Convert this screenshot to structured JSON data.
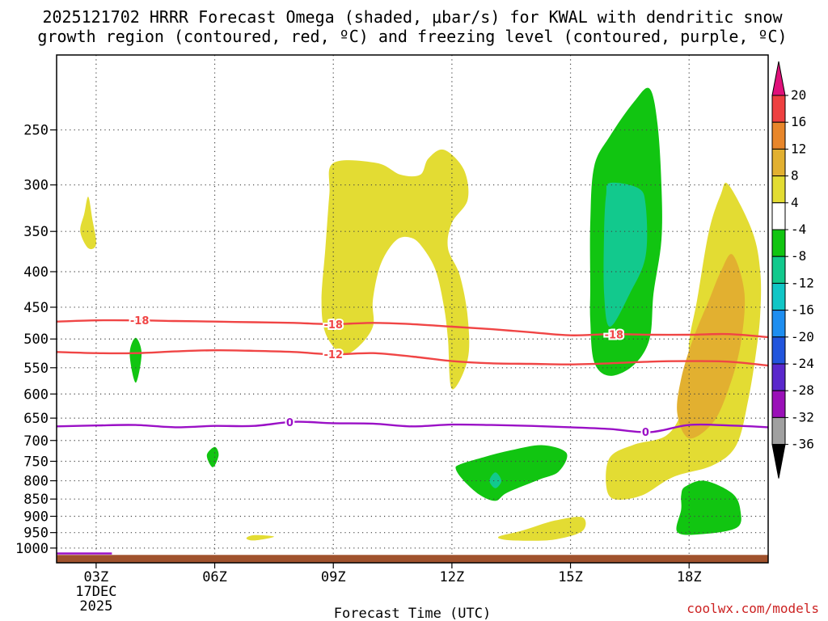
{
  "chart_data": {
    "type": "heatmap",
    "title_lines": [
      "2025121702 HRRR Forecast Omega (shaded, μbar/s) for KWAL with dendritic snow",
      "growth region (contoured, red, ºC) and freezing level (contoured, purple, ºC)"
    ],
    "xlabel": "Forecast Time (UTC)",
    "ylabel": "",
    "credit": "coolwx.com/models",
    "x_ticks": [
      {
        "hour": 3,
        "label": "03Z",
        "sub": [
          "17DEC",
          "2025"
        ]
      },
      {
        "hour": 6,
        "label": "06Z",
        "sub": []
      },
      {
        "hour": 9,
        "label": "09Z",
        "sub": []
      },
      {
        "hour": 12,
        "label": "12Z",
        "sub": []
      },
      {
        "hour": 15,
        "label": "15Z",
        "sub": []
      },
      {
        "hour": 18,
        "label": "18Z",
        "sub": []
      }
    ],
    "xlim": [
      2.0,
      20.0
    ],
    "y_scale": "log",
    "ylim": [
      1050,
      195
    ],
    "y_ticks": [
      250,
      300,
      350,
      400,
      450,
      500,
      550,
      600,
      650,
      700,
      750,
      800,
      850,
      900,
      950,
      1000
    ],
    "grid": true,
    "colorbar": {
      "units": "μbar/s",
      "labels": [
        "20",
        "16",
        "12",
        "8",
        "4",
        "-4",
        "-8",
        "-12",
        "-16",
        "-20",
        "-24",
        "-28",
        "-32",
        "-36"
      ],
      "colors": [
        "#e0107a",
        "#ee4040",
        "#e8862a",
        "#e2b030",
        "#e3dc33",
        "#ffffff",
        "#11c511",
        "#12c98d",
        "#11c6c6",
        "#1e8ef0",
        "#2255dd",
        "#5a28cc",
        "#9a10b8",
        "#a0a0a0",
        "#000000"
      ]
    },
    "shaded_regions": [
      {
        "class": "4 to 8",
        "color": "#e3dc33",
        "points": [
          [
            2.8,
            312
          ],
          [
            2.9,
            335
          ],
          [
            3.0,
            365
          ],
          [
            2.8,
            370
          ],
          [
            2.6,
            350
          ],
          [
            2.7,
            330
          ]
        ]
      },
      {
        "class": "4 to 8",
        "color": "#e3dc33",
        "points": [
          [
            7.0,
            958
          ],
          [
            7.5,
            963
          ],
          [
            7.0,
            975
          ],
          [
            6.8,
            968
          ]
        ]
      },
      {
        "class": "4 to 8",
        "color": "#e3dc33",
        "points": [
          [
            9.0,
            279
          ],
          [
            10.1,
            279
          ],
          [
            10.7,
            290
          ],
          [
            11.2,
            290
          ],
          [
            11.4,
            275
          ],
          [
            11.8,
            267
          ],
          [
            12.3,
            285
          ],
          [
            12.4,
            315
          ],
          [
            12.0,
            340
          ],
          [
            11.9,
            370
          ],
          [
            12.2,
            405
          ],
          [
            12.4,
            465
          ],
          [
            12.4,
            535
          ],
          [
            12.0,
            590
          ],
          [
            11.9,
            500
          ],
          [
            11.8,
            450
          ],
          [
            11.6,
            400
          ],
          [
            11.3,
            372
          ],
          [
            11.0,
            358
          ],
          [
            10.6,
            360
          ],
          [
            10.2,
            390
          ],
          [
            10.0,
            440
          ],
          [
            10.0,
            480
          ],
          [
            9.6,
            515
          ],
          [
            9.2,
            525
          ],
          [
            8.8,
            490
          ],
          [
            8.7,
            440
          ],
          [
            8.8,
            370
          ],
          [
            8.9,
            310
          ]
        ]
      },
      {
        "class": "4 to 8",
        "color": "#e3dc33",
        "points": [
          [
            13.2,
            962
          ],
          [
            13.8,
            943
          ],
          [
            14.6,
            913
          ],
          [
            15.3,
            903
          ],
          [
            15.3,
            945
          ],
          [
            14.6,
            972
          ],
          [
            13.8,
            976
          ],
          [
            13.3,
            972
          ]
        ]
      },
      {
        "class": "4 to 8",
        "color": "#e3dc33",
        "points": [
          [
            19.0,
            300
          ],
          [
            19.6,
            350
          ],
          [
            19.8,
            400
          ],
          [
            19.8,
            460
          ],
          [
            19.7,
            520
          ],
          [
            19.5,
            610
          ],
          [
            19.2,
            710
          ],
          [
            18.6,
            760
          ],
          [
            17.6,
            790
          ],
          [
            16.8,
            840
          ],
          [
            16.1,
            850
          ],
          [
            15.9,
            810
          ],
          [
            16.0,
            740
          ],
          [
            16.6,
            710
          ],
          [
            17.4,
            690
          ],
          [
            17.8,
            640
          ],
          [
            18.0,
            570
          ],
          [
            18.0,
            505
          ],
          [
            18.2,
            440
          ],
          [
            18.5,
            350
          ],
          [
            18.8,
            310
          ]
        ]
      },
      {
        "class": "8 to 12",
        "color": "#e2b030",
        "points": [
          [
            19.1,
            378
          ],
          [
            19.4,
            430
          ],
          [
            19.3,
            510
          ],
          [
            19.0,
            590
          ],
          [
            18.6,
            660
          ],
          [
            18.0,
            695
          ],
          [
            17.7,
            640
          ],
          [
            17.8,
            570
          ],
          [
            18.1,
            500
          ],
          [
            18.5,
            440
          ],
          [
            18.8,
            400
          ]
        ]
      },
      {
        "class": "-4 to -8",
        "color": "#11c511",
        "points": [
          [
            4.0,
            498
          ],
          [
            4.15,
            525
          ],
          [
            4.0,
            578
          ],
          [
            3.85,
            525
          ]
        ]
      },
      {
        "class": "-4 to -8",
        "color": "#11c511",
        "points": [
          [
            6.0,
            715
          ],
          [
            6.1,
            735
          ],
          [
            5.95,
            765
          ],
          [
            5.8,
            735
          ]
        ]
      },
      {
        "class": "-4 to -8",
        "color": "#11c511",
        "points": [
          [
            17.0,
            218
          ],
          [
            17.2,
            245
          ],
          [
            17.3,
            300
          ],
          [
            17.3,
            360
          ],
          [
            17.1,
            430
          ],
          [
            17.0,
            500
          ],
          [
            16.6,
            545
          ],
          [
            16.0,
            565
          ],
          [
            15.6,
            540
          ],
          [
            15.5,
            470
          ],
          [
            15.5,
            420
          ],
          [
            15.5,
            340
          ],
          [
            15.6,
            282
          ],
          [
            16.0,
            255
          ],
          [
            16.6,
            228
          ]
        ]
      },
      {
        "class": "-4 to -8",
        "color": "#11c511",
        "points": [
          [
            12.2,
            758
          ],
          [
            12.8,
            740
          ],
          [
            13.5,
            723
          ],
          [
            14.3,
            711
          ],
          [
            14.9,
            730
          ],
          [
            14.7,
            776
          ],
          [
            14.2,
            797
          ],
          [
            13.4,
            832
          ],
          [
            13.1,
            855
          ],
          [
            12.7,
            838
          ],
          [
            12.3,
            800
          ],
          [
            12.1,
            770
          ]
        ]
      },
      {
        "class": "-4 to -8",
        "color": "#11c511",
        "points": [
          [
            17.9,
            816
          ],
          [
            18.4,
            800
          ],
          [
            19.1,
            835
          ],
          [
            19.3,
            885
          ],
          [
            19.2,
            935
          ],
          [
            18.3,
            955
          ],
          [
            17.7,
            948
          ],
          [
            17.8,
            880
          ],
          [
            17.8,
            840
          ]
        ]
      },
      {
        "class": "-8 to -12",
        "color": "#12c98d",
        "points": [
          [
            16.0,
            298
          ],
          [
            16.7,
            303
          ],
          [
            16.9,
            320
          ],
          [
            16.9,
            380
          ],
          [
            16.5,
            430
          ],
          [
            16.0,
            480
          ],
          [
            15.85,
            430
          ],
          [
            15.85,
            350
          ],
          [
            15.9,
            310
          ]
        ]
      },
      {
        "class": "-8 to -12",
        "color": "#12c98d",
        "points": [
          [
            13.1,
            778
          ],
          [
            13.25,
            800
          ],
          [
            13.1,
            820
          ],
          [
            12.95,
            800
          ]
        ]
      }
    ],
    "contours": [
      {
        "name": "-18",
        "kind": "dendritic snow growth",
        "color": "#f04545",
        "x": [
          2.0,
          3.0,
          4.0,
          5.0,
          6.0,
          7.0,
          8.0,
          9.0,
          10.0,
          11.0,
          12.0,
          13.0,
          14.0,
          15.0,
          16.0,
          17.0,
          18.0,
          19.0,
          20.0
        ],
        "y": [
          472,
          470,
          470,
          471,
          472,
          473,
          474,
          476,
          474,
          476,
          480,
          484,
          489,
          494,
          492,
          493,
          493,
          492,
          497
        ],
        "labels": [
          {
            "x": 4.1,
            "text": "-18"
          },
          {
            "x": 9.0,
            "text": "-18"
          },
          {
            "x": 16.1,
            "text": "-18"
          }
        ]
      },
      {
        "name": "-12",
        "kind": "dendritic snow growth",
        "color": "#f04545",
        "x": [
          2.0,
          3.0,
          4.0,
          5.0,
          6.0,
          7.0,
          8.0,
          9.0,
          10.0,
          11.0,
          12.0,
          13.0,
          14.0,
          15.0,
          16.0,
          17.0,
          18.0,
          19.0,
          20.0
        ],
        "y": [
          522,
          524,
          524,
          521,
          519,
          520,
          522,
          526,
          524,
          530,
          538,
          542,
          543,
          544,
          542,
          539,
          538,
          539,
          546
        ],
        "labels": [
          {
            "x": 9.0,
            "text": "-12"
          }
        ]
      },
      {
        "name": "0",
        "kind": "freezing level",
        "color": "#9a10c6",
        "x": [
          2.0,
          3.0,
          4.0,
          5.0,
          6.0,
          7.0,
          8.0,
          9.0,
          10.0,
          11.0,
          12.0,
          13.0,
          14.0,
          15.0,
          16.0,
          17.0,
          18.0,
          19.0,
          20.0
        ],
        "y": [
          668,
          666,
          665,
          670,
          667,
          667,
          658,
          661,
          662,
          668,
          664,
          665,
          667,
          670,
          674,
          681,
          665,
          666,
          670
        ],
        "labels": [
          {
            "x": 7.9,
            "text": "0"
          },
          {
            "x": 16.9,
            "text": "0"
          }
        ]
      },
      {
        "name": "0",
        "kind": "freezing level",
        "color": "#9a10c6",
        "x": [
          2.0,
          3.4
        ],
        "y": [
          1018,
          1018
        ],
        "labels": []
      }
    ],
    "terrain": {
      "color": "#a0522d",
      "surface_pressure_hpa": 1023
    }
  }
}
